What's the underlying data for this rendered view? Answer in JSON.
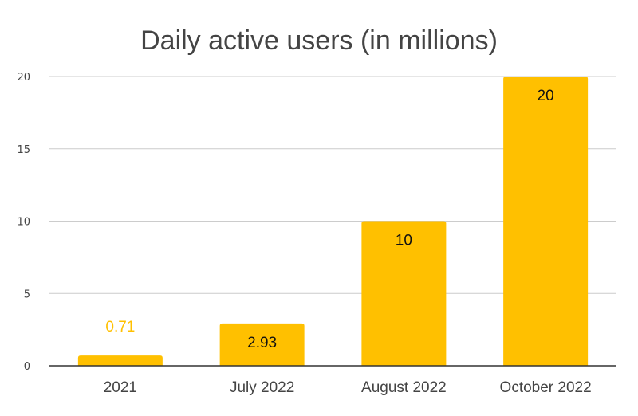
{
  "chart_data": {
    "type": "bar",
    "title": "Daily active users (in millions)",
    "xlabel": "",
    "ylabel": "",
    "categories": [
      "2021",
      "July 2022",
      "August 2022",
      "October 2022"
    ],
    "values": [
      0.71,
      2.93,
      10,
      20
    ],
    "data_labels": [
      "0.71",
      "2.93",
      "10",
      "20"
    ],
    "ylim": [
      0,
      20
    ],
    "yticks": [
      0,
      5,
      10,
      15,
      20
    ],
    "ytick_labels": [
      "0",
      "5",
      "10",
      "15",
      "20"
    ],
    "grid": true,
    "legend": "none",
    "bar_color": "#FFC000"
  }
}
